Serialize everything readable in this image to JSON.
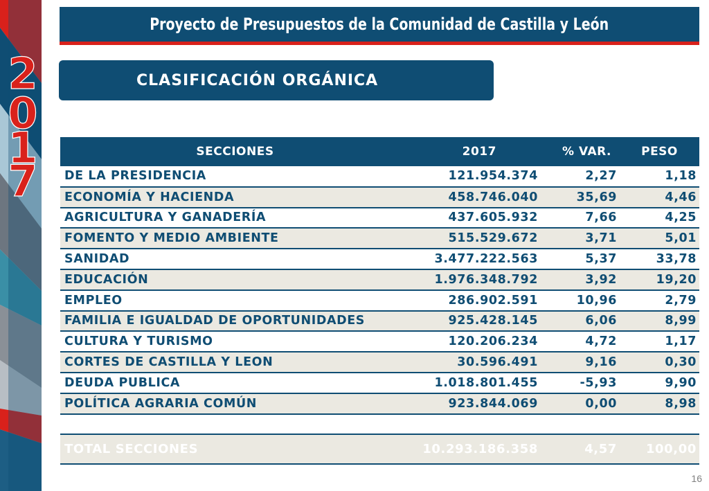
{
  "header": {
    "title": "Proyecto de Presupuestos de la Comunidad de Castilla y León"
  },
  "sidebar": {
    "year": "2017"
  },
  "section": {
    "title": "CLASIFICACIÓN ORGÁNICA"
  },
  "table": {
    "headers": [
      "SECCIONES",
      "2017",
      "% VAR.",
      "PESO"
    ],
    "rows": [
      [
        "DE LA PRESIDENCIA",
        "121.954.374",
        "2,27",
        "1,18"
      ],
      [
        "ECONOMÍA Y HACIENDA",
        "458.746.040",
        "35,69",
        "4,46"
      ],
      [
        "AGRICULTURA Y GANADERÍA",
        "437.605.932",
        "7,66",
        "4,25"
      ],
      [
        "FOMENTO Y MEDIO AMBIENTE",
        "515.529.672",
        "3,71",
        "5,01"
      ],
      [
        "SANIDAD",
        "3.477.222.563",
        "5,37",
        "33,78"
      ],
      [
        "EDUCACIÓN",
        "1.976.348.792",
        "3,92",
        "19,20"
      ],
      [
        "EMPLEO",
        "286.902.591",
        "10,96",
        "2,79"
      ],
      [
        "FAMILIA E IGUALDAD DE OPORTUNIDADES",
        "925.428.145",
        "6,06",
        "8,99"
      ],
      [
        "CULTURA Y TURISMO",
        "120.206.234",
        "4,72",
        "1,17"
      ],
      [
        "CORTES DE CASTILLA Y LEON",
        "30.596.491",
        "9,16",
        "0,30"
      ],
      [
        "DEUDA PUBLICA",
        "1.018.801.455",
        "-5,93",
        "9,90"
      ],
      [
        "POLÍTICA AGRARIA COMÚN",
        "923.844.069",
        "0,00",
        "8,98"
      ]
    ],
    "total": [
      "TOTAL SECCIONES",
      "10.293.186.358",
      "4,57",
      "100,00"
    ]
  },
  "footer": {
    "page_number": "16"
  },
  "colors": {
    "primary": "#0f4d73",
    "accent": "#d9211b",
    "row_alt": "#ebe9e1"
  }
}
